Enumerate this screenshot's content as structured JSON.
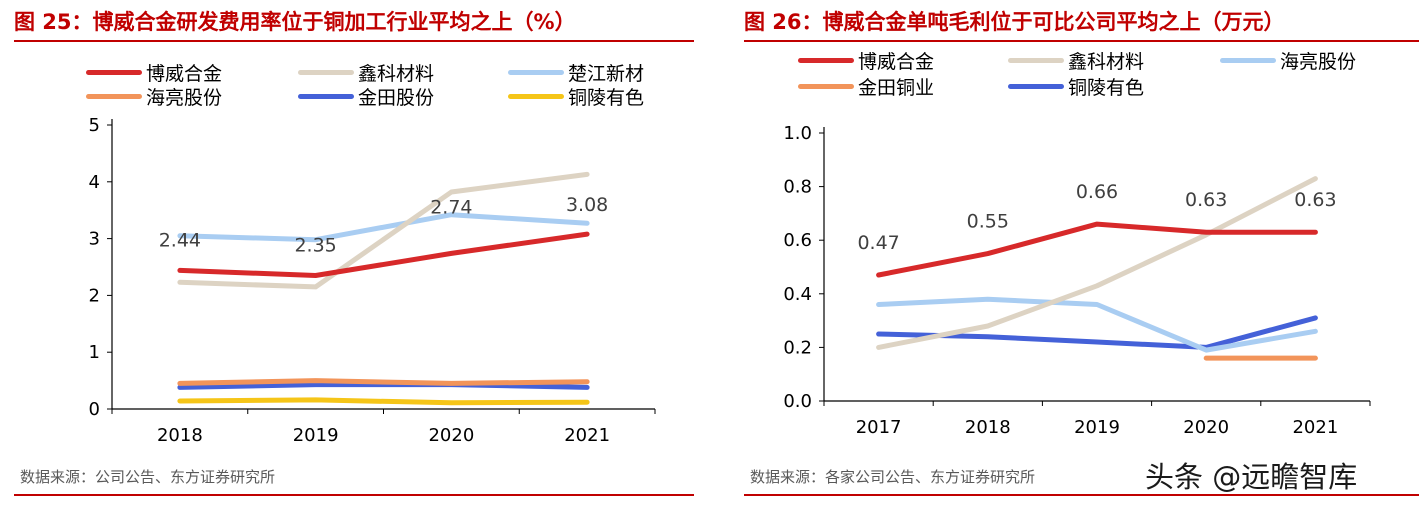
{
  "charts": [
    {
      "title": "图 25：博威合金研发费用率位于铜加工行业平均之上（%）",
      "source": "数据来源：公司公告、东方证券研究所",
      "chart_data": {
        "type": "line",
        "categories": [
          "2018",
          "2019",
          "2020",
          "2021"
        ],
        "ylim": [
          0,
          5
        ],
        "yticks": [
          "0",
          "1",
          "2",
          "3",
          "4",
          "5"
        ],
        "xlabel": "",
        "ylabel": "",
        "grid": false,
        "legend": "top",
        "series": [
          {
            "name": "博威合金",
            "color": "#d7292a",
            "values": [
              2.44,
              2.35,
              2.74,
              3.08
            ],
            "labels": [
              "2.44",
              "2.35",
              "2.74",
              "3.08"
            ]
          },
          {
            "name": "鑫科材料",
            "color": "#ddd3c3",
            "values": [
              2.23,
              2.15,
              3.82,
              4.13
            ]
          },
          {
            "name": "楚江新材",
            "color": "#a9cdf2",
            "values": [
              3.05,
              2.98,
              3.42,
              3.27
            ]
          },
          {
            "name": "海亮股份",
            "color": "#f2945a",
            "values": [
              0.45,
              0.5,
              0.45,
              0.48
            ]
          },
          {
            "name": "金田股份",
            "color": "#4461d8",
            "values": [
              0.38,
              0.43,
              0.43,
              0.38
            ]
          },
          {
            "name": "铜陵有色",
            "color": "#f5c518",
            "values": [
              0.14,
              0.16,
              0.11,
              0.12
            ]
          }
        ]
      }
    },
    {
      "title": "图 26：博威合金单吨毛利位于可比公司平均之上（万元）",
      "source": "数据来源：各家公司公告、东方证券研究所",
      "chart_data": {
        "type": "line",
        "categories": [
          "2017",
          "2018",
          "2019",
          "2020",
          "2021"
        ],
        "ylim": [
          0,
          1.0
        ],
        "yticks": [
          "0.0",
          "0.2",
          "0.4",
          "0.6",
          "0.8",
          "1.0"
        ],
        "xlabel": "",
        "ylabel": "",
        "grid": false,
        "legend": "top",
        "series": [
          {
            "name": "博威合金",
            "color": "#d7292a",
            "values": [
              0.47,
              0.55,
              0.66,
              0.63,
              0.63
            ],
            "labels": [
              "0.47",
              "0.55",
              "0.66",
              "0.63",
              "0.63"
            ]
          },
          {
            "name": "鑫科材料",
            "color": "#ddd3c3",
            "values": [
              0.2,
              0.28,
              0.43,
              0.62,
              0.83
            ]
          },
          {
            "name": "海亮股份",
            "color": "#a9cdf2",
            "values": [
              0.36,
              0.38,
              0.36,
              0.19,
              0.26
            ]
          },
          {
            "name": "金田铜业",
            "color": "#f2945a",
            "values": [
              null,
              null,
              null,
              0.16,
              0.16
            ]
          },
          {
            "name": "铜陵有色",
            "color": "#4461d8",
            "values": [
              0.25,
              0.24,
              0.22,
              0.2,
              0.31
            ]
          }
        ]
      }
    }
  ],
  "watermark": "头条 @远瞻智库"
}
